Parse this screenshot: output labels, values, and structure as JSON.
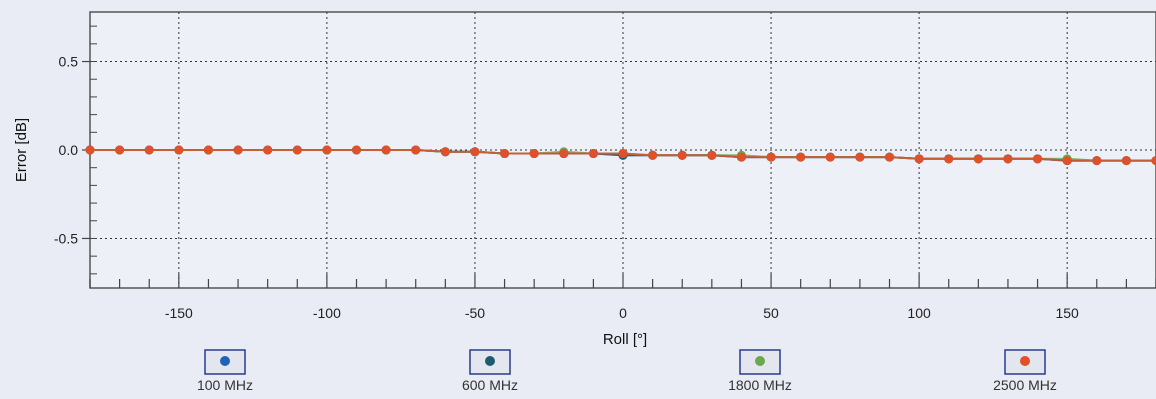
{
  "chart_data": {
    "type": "scatter",
    "title": "",
    "xlabel": "Roll [°]",
    "ylabel": "Error [dB]",
    "xlim": [
      -180,
      180
    ],
    "ylim": [
      -0.78,
      0.78
    ],
    "xticks": [
      -150,
      -100,
      -50,
      0,
      50,
      100,
      150
    ],
    "xtick_labels": [
      "-150",
      "-100",
      "-50",
      "0",
      "50",
      "100",
      "150"
    ],
    "yticks": [
      0.5,
      0.0,
      -0.5
    ],
    "ytick_labels": [
      "0.5",
      "0.0",
      "-0.5"
    ],
    "grid": true,
    "legend_position": "bottom",
    "series": [
      {
        "name": "100 MHz",
        "color": "#1f63b5",
        "x": [
          -180,
          -170,
          -160,
          -150,
          -140,
          -130,
          -120,
          -110,
          -100,
          -90,
          -80,
          -70,
          -60,
          -50,
          -40,
          -30,
          -20,
          -10,
          0,
          10,
          20,
          30,
          40,
          50,
          60,
          70,
          80,
          90,
          100,
          110,
          120,
          130,
          140,
          150,
          160,
          170,
          180
        ],
        "y": [
          0,
          0,
          0,
          0,
          0,
          0,
          0,
          0,
          0,
          0,
          0,
          0,
          -0.01,
          -0.01,
          -0.02,
          -0.02,
          -0.02,
          -0.02,
          -0.03,
          -0.03,
          -0.03,
          -0.03,
          -0.04,
          -0.04,
          -0.04,
          -0.04,
          -0.04,
          -0.04,
          -0.05,
          -0.05,
          -0.05,
          -0.05,
          -0.05,
          -0.06,
          -0.06,
          -0.06,
          -0.06
        ]
      },
      {
        "name": "600 MHz",
        "color": "#1d5a72",
        "x": [
          -180,
          -170,
          -160,
          -150,
          -140,
          -130,
          -120,
          -110,
          -100,
          -90,
          -80,
          -70,
          -60,
          -50,
          -40,
          -30,
          -20,
          -10,
          0,
          10,
          20,
          30,
          40,
          50,
          60,
          70,
          80,
          90,
          100,
          110,
          120,
          130,
          140,
          150,
          160,
          170,
          180
        ],
        "y": [
          0,
          0,
          0,
          0,
          0,
          0,
          0,
          0,
          0,
          0,
          0,
          0,
          -0.01,
          -0.01,
          -0.02,
          -0.02,
          -0.02,
          -0.02,
          -0.03,
          -0.03,
          -0.03,
          -0.03,
          -0.04,
          -0.04,
          -0.04,
          -0.04,
          -0.04,
          -0.04,
          -0.05,
          -0.05,
          -0.05,
          -0.05,
          -0.05,
          -0.06,
          -0.06,
          -0.06,
          -0.06
        ]
      },
      {
        "name": "1800 MHz",
        "color": "#6aa84f",
        "x": [
          -180,
          -170,
          -160,
          -150,
          -140,
          -130,
          -120,
          -110,
          -100,
          -90,
          -80,
          -70,
          -60,
          -50,
          -40,
          -30,
          -20,
          -10,
          0,
          10,
          20,
          30,
          40,
          50,
          60,
          70,
          80,
          90,
          100,
          110,
          120,
          130,
          140,
          150,
          160,
          170,
          180
        ],
        "y": [
          0,
          0,
          0,
          0,
          0,
          0,
          0,
          0,
          0,
          0,
          0,
          0,
          -0.01,
          -0.01,
          -0.02,
          -0.02,
          -0.01,
          -0.02,
          -0.02,
          -0.03,
          -0.03,
          -0.03,
          -0.03,
          -0.04,
          -0.04,
          -0.04,
          -0.04,
          -0.04,
          -0.05,
          -0.05,
          -0.05,
          -0.05,
          -0.05,
          -0.05,
          -0.06,
          -0.06,
          -0.06
        ]
      },
      {
        "name": "2500 MHz",
        "color": "#e0502a",
        "x": [
          -180,
          -170,
          -160,
          -150,
          -140,
          -130,
          -120,
          -110,
          -100,
          -90,
          -80,
          -70,
          -60,
          -50,
          -40,
          -30,
          -20,
          -10,
          0,
          10,
          20,
          30,
          40,
          50,
          60,
          70,
          80,
          90,
          100,
          110,
          120,
          130,
          140,
          150,
          160,
          170,
          180
        ],
        "y": [
          0,
          0,
          0,
          0,
          0,
          0,
          0,
          0,
          0,
          0,
          0,
          0,
          -0.01,
          -0.01,
          -0.02,
          -0.02,
          -0.02,
          -0.02,
          -0.02,
          -0.03,
          -0.03,
          -0.03,
          -0.04,
          -0.04,
          -0.04,
          -0.04,
          -0.04,
          -0.04,
          -0.05,
          -0.05,
          -0.05,
          -0.05,
          -0.05,
          -0.06,
          -0.06,
          -0.06,
          -0.06
        ]
      }
    ]
  }
}
